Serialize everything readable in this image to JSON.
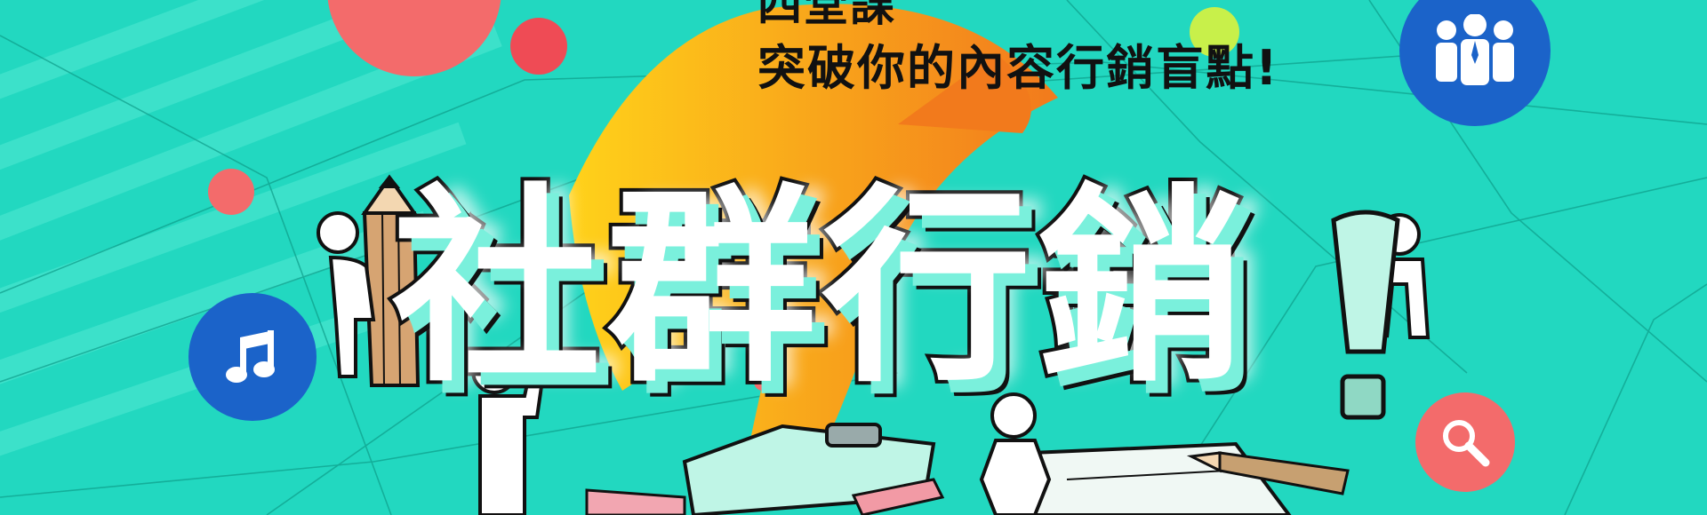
{
  "banner": {
    "top_line": "四堂課",
    "subtitle": "突破你的內容行銷盲點!",
    "main_title": "社群行銷"
  },
  "icons": {
    "bulb": "lightbulb-icon",
    "team": "people-group-icon",
    "music": "music-note-icon",
    "search": "magnifier-icon"
  },
  "colors": {
    "background": "#22d8c0",
    "orange": "#f5a31c",
    "red": "#ef4b55",
    "blue": "#1b63c9",
    "coral": "#f36b6b",
    "lime": "#c8f04a"
  }
}
